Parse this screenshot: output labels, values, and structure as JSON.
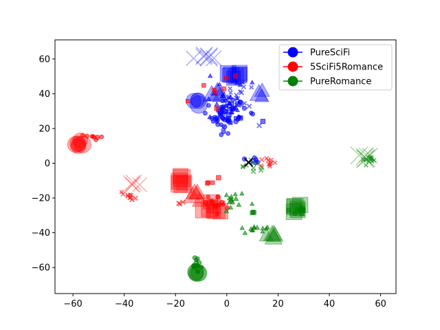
{
  "chart_data": {
    "type": "scatter",
    "title": "",
    "xlabel": "",
    "ylabel": "",
    "xlim": [
      -67,
      66
    ],
    "ylim": [
      -75,
      71
    ],
    "xticks": [
      -60,
      -40,
      -20,
      0,
      20,
      40,
      60
    ],
    "yticks": [
      -60,
      -40,
      -20,
      0,
      20,
      40,
      60
    ],
    "grid": false,
    "legend_position": "top-right",
    "legend": [
      {
        "name": "PureSciFi",
        "color": "#0000ff"
      },
      {
        "name": "5SciFi5Romance",
        "color": "#ff0000"
      },
      {
        "name": "PureRomance",
        "color": "#008000"
      }
    ],
    "series": [
      {
        "name": "PureSciFi",
        "color": "#0000ff",
        "clusters": [
          {
            "marker": "x",
            "center": [
              -8,
              61
            ],
            "spread": [
              4,
              2
            ],
            "count": 6,
            "size": "large"
          },
          {
            "marker": "square",
            "center": [
              3,
              51
            ],
            "spread": [
              3,
              2
            ],
            "count": 8,
            "size": "large"
          },
          {
            "marker": "circle",
            "center": [
              -12,
              37
            ],
            "spread": [
              1.5,
              3
            ],
            "count": 4,
            "size": "large"
          },
          {
            "marker": "triangle",
            "center": [
              -3,
              40
            ],
            "spread": [
              3,
              2
            ],
            "count": 4,
            "size": "large"
          },
          {
            "marker": "triangle",
            "center": [
              13,
              40
            ],
            "spread": [
              2,
              2
            ],
            "count": 3,
            "size": "large"
          },
          {
            "marker": "circle",
            "center": [
              -1,
              28
            ],
            "spread": [
              7,
              8
            ],
            "count": 40,
            "size": "small"
          },
          {
            "marker": "x",
            "center": [
              3,
              35
            ],
            "spread": [
              8,
              10
            ],
            "count": 25,
            "size": "small"
          },
          {
            "marker": "triangle",
            "center": [
              0,
              35
            ],
            "spread": [
              7,
              10
            ],
            "count": 20,
            "size": "small"
          },
          {
            "marker": "square",
            "center": [
              2,
              30
            ],
            "spread": [
              7,
              9
            ],
            "count": 15,
            "size": "small"
          },
          {
            "marker": "circle",
            "center": [
              10,
              2
            ],
            "spread": [
              3,
              2
            ],
            "count": 6,
            "size": "small"
          }
        ]
      },
      {
        "name": "5SciFi5Romance",
        "color": "#ff0000",
        "clusters": [
          {
            "marker": "circle",
            "center": [
              -58,
              11
            ],
            "spread": [
              2,
              2
            ],
            "count": 6,
            "size": "large"
          },
          {
            "marker": "circle",
            "center": [
              -52,
              15
            ],
            "spread": [
              2,
              1.5
            ],
            "count": 8,
            "size": "small"
          },
          {
            "marker": "x",
            "center": [
              -36,
              -12
            ],
            "spread": [
              1.5,
              1.5
            ],
            "count": 4,
            "size": "large"
          },
          {
            "marker": "x",
            "center": [
              -38,
              -19
            ],
            "spread": [
              2,
              2
            ],
            "count": 10,
            "size": "small"
          },
          {
            "marker": "square",
            "center": [
              -18,
              -10
            ],
            "spread": [
              2,
              2
            ],
            "count": 6,
            "size": "large"
          },
          {
            "marker": "triangle",
            "center": [
              -12,
              -17
            ],
            "spread": [
              3,
              3
            ],
            "count": 5,
            "size": "large"
          },
          {
            "marker": "square",
            "center": [
              -5,
              -26
            ],
            "spread": [
              3,
              3
            ],
            "count": 7,
            "size": "large"
          },
          {
            "marker": "x",
            "center": [
              -18,
              -24
            ],
            "spread": [
              1.5,
              1
            ],
            "count": 3,
            "size": "small"
          },
          {
            "marker": "circle",
            "center": [
              -4,
              -22
            ],
            "spread": [
              4,
              5
            ],
            "count": 12,
            "size": "small"
          },
          {
            "marker": "square",
            "center": [
              -5,
              -10
            ],
            "spread": [
              3,
              3
            ],
            "count": 4,
            "size": "small"
          },
          {
            "marker": "x",
            "center": [
              16,
              0
            ],
            "spread": [
              4,
              3
            ],
            "count": 10,
            "size": "small"
          },
          {
            "marker": "square",
            "center": [
              -3,
              45
            ],
            "spread": [
              6,
              10
            ],
            "count": 8,
            "size": "small"
          }
        ]
      },
      {
        "name": "PureRomance",
        "color": "#008000",
        "clusters": [
          {
            "marker": "x",
            "center": [
              54,
              4
            ],
            "spread": [
              2,
              2
            ],
            "count": 6,
            "size": "large"
          },
          {
            "marker": "x",
            "center": [
              55,
              2
            ],
            "spread": [
              3,
              2
            ],
            "count": 10,
            "size": "small"
          },
          {
            "marker": "square",
            "center": [
              26,
              -26
            ],
            "spread": [
              2,
              2
            ],
            "count": 6,
            "size": "large"
          },
          {
            "marker": "square",
            "center": [
              28,
              -27
            ],
            "spread": [
              3,
              2
            ],
            "count": 10,
            "size": "small"
          },
          {
            "marker": "triangle",
            "center": [
              16,
              -42
            ],
            "spread": [
              2,
              3
            ],
            "count": 5,
            "size": "large"
          },
          {
            "marker": "triangle",
            "center": [
              10,
              -38
            ],
            "spread": [
              5,
              3
            ],
            "count": 12,
            "size": "small"
          },
          {
            "marker": "circle",
            "center": [
              -11,
              -64
            ],
            "spread": [
              1.5,
              2
            ],
            "count": 5,
            "size": "large"
          },
          {
            "marker": "circle",
            "center": [
              -12,
              -59
            ],
            "spread": [
              2,
              4
            ],
            "count": 14,
            "size": "small"
          },
          {
            "marker": "triangle",
            "center": [
              2,
              -22
            ],
            "spread": [
              4,
              6
            ],
            "count": 14,
            "size": "small"
          },
          {
            "marker": "x",
            "center": [
              10,
              -2
            ],
            "spread": [
              4,
              3
            ],
            "count": 10,
            "size": "small"
          },
          {
            "marker": "square",
            "center": [
              10,
              -28
            ],
            "spread": [
              1,
              1
            ],
            "count": 3,
            "size": "small"
          }
        ]
      }
    ],
    "highlight": {
      "marker": "x",
      "x": 8.5,
      "y": 0.5,
      "color": "#000000"
    }
  }
}
